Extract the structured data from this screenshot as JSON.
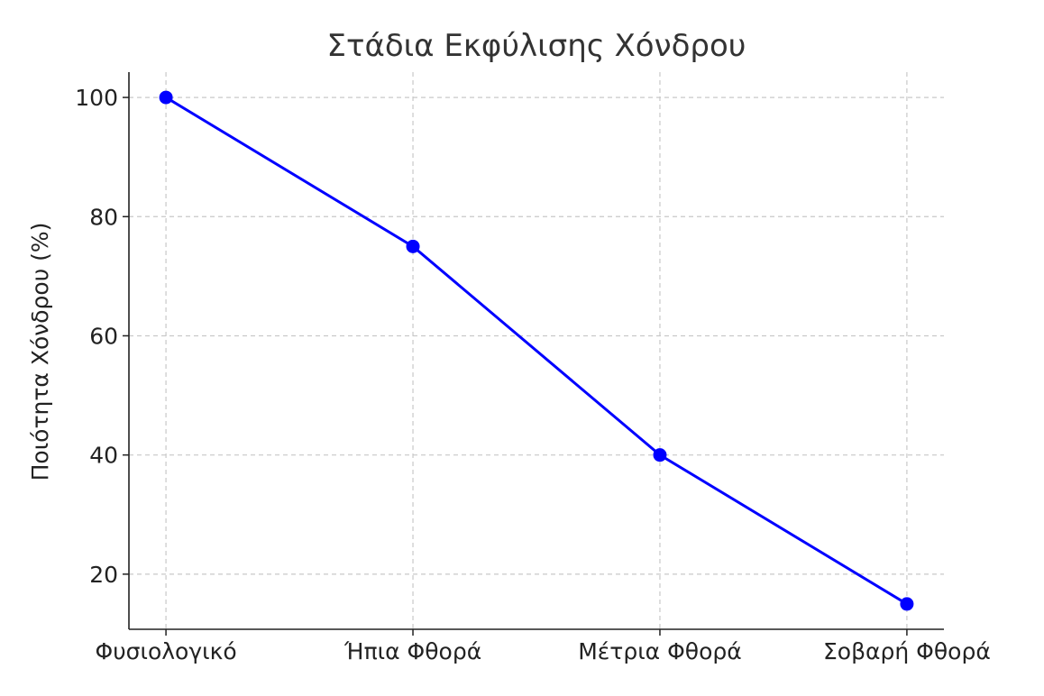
{
  "chart_data": {
    "type": "line",
    "title": "Στάδια Εκφύλισης Χόνδρου",
    "xlabel": "",
    "ylabel": "Ποιότητα Χόνδρου (%)",
    "categories": [
      "Φυσιολογικό",
      "Ήπια Φθορά",
      "Μέτρια Φθορά",
      "Σοβαρή Φθορά"
    ],
    "values": [
      100,
      75,
      40,
      15
    ],
    "ylim": [
      10.75,
      104.25
    ],
    "yticks": [
      20,
      40,
      60,
      80,
      100
    ],
    "grid": true,
    "marker": "circle",
    "line_color": "#0000ff"
  }
}
